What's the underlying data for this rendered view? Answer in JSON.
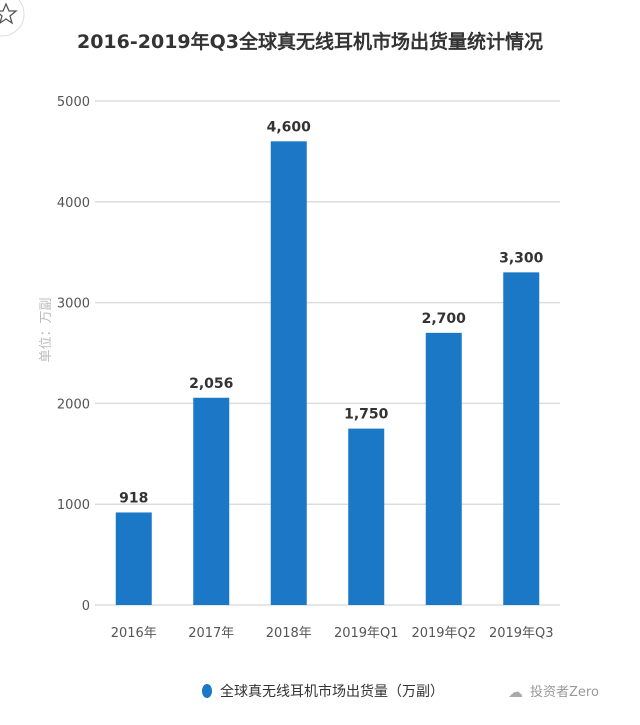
{
  "chart_data": {
    "type": "bar",
    "title": "2016-2019年Q3全球真无线耳机市场出货量统计情况",
    "ylabel": "单位：万副",
    "xlabel": "",
    "categories": [
      "2016年",
      "2017年",
      "2018年",
      "2019年Q1",
      "2019年Q2",
      "2019年Q3"
    ],
    "series": [
      {
        "name": "全球真无线耳机市场出货量（万副）",
        "values": [
          918,
          2056,
          4600,
          1750,
          2700,
          3300
        ],
        "labels": [
          "918",
          "2,056",
          "4,600",
          "1,750",
          "2,700",
          "3,300"
        ]
      }
    ],
    "ylim": [
      0,
      5000
    ],
    "yticks": [
      0,
      1000,
      2000,
      3000,
      4000,
      5000
    ],
    "grid": true,
    "legend": "bottom",
    "color": "#1a78c6"
  },
  "watermark": "投资者Zero",
  "icons": {
    "favorite": "star-icon",
    "wechat": "wechat-icon"
  }
}
